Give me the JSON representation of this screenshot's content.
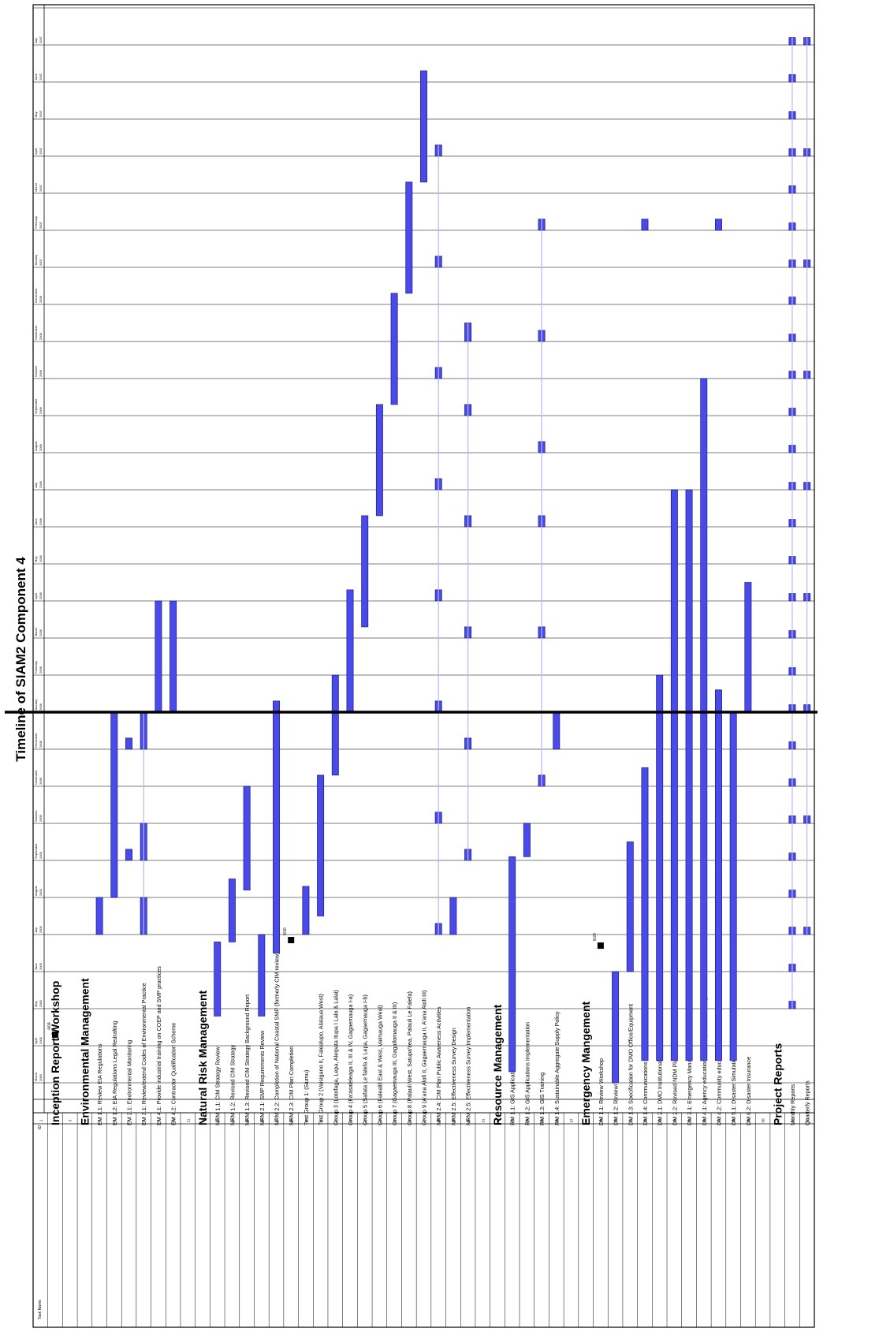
{
  "chart_data": {
    "type": "gantt",
    "title": "Timeline of SIAM2 Component 4",
    "columns": {
      "id": "ID",
      "task_name": "Task Name"
    },
    "months": [
      {
        "name": "March",
        "year": "2005"
      },
      {
        "name": "April",
        "year": "2005"
      },
      {
        "name": "May",
        "year": "2005"
      },
      {
        "name": "June",
        "year": "2005"
      },
      {
        "name": "July",
        "year": "2005"
      },
      {
        "name": "August",
        "year": "2005"
      },
      {
        "name": "September",
        "year": "2005"
      },
      {
        "name": "October",
        "year": "2005"
      },
      {
        "name": "November",
        "year": "2005"
      },
      {
        "name": "December",
        "year": "2005"
      },
      {
        "name": "January",
        "year": "2006"
      },
      {
        "name": "February",
        "year": "2006"
      },
      {
        "name": "March",
        "year": "2006"
      },
      {
        "name": "April",
        "year": "2006"
      },
      {
        "name": "May",
        "year": "2006"
      },
      {
        "name": "June",
        "year": "2006"
      },
      {
        "name": "July",
        "year": "2006"
      },
      {
        "name": "August",
        "year": "2006"
      },
      {
        "name": "September",
        "year": "2006"
      },
      {
        "name": "October",
        "year": "2006"
      },
      {
        "name": "November",
        "year": "2006"
      },
      {
        "name": "December",
        "year": "2006"
      },
      {
        "name": "January",
        "year": "2007"
      },
      {
        "name": "February",
        "year": "2007"
      },
      {
        "name": "March",
        "year": "2007"
      },
      {
        "name": "April",
        "year": "2007"
      },
      {
        "name": "May",
        "year": "2007"
      },
      {
        "name": "June",
        "year": "2007"
      },
      {
        "name": "July",
        "year": "2007"
      }
    ],
    "today_line_month": 10,
    "tasks": [
      {
        "id": "1",
        "name": "",
        "heading": false
      },
      {
        "id": "2",
        "name": "Inception Report Workshop",
        "heading": true,
        "milestone": 1.3,
        "milestone_label": "4/04"
      },
      {
        "id": "3",
        "name": "",
        "heading": false
      },
      {
        "id": "4",
        "name": "Environmental Management",
        "heading": true
      },
      {
        "id": "5",
        "name": "EM 1.1: Review EIA Regulations",
        "bars": [
          [
            4.0,
            5.0
          ]
        ]
      },
      {
        "id": "6",
        "name": "EM 1.2: EIA Regulations Legal Redrafting",
        "bars": [
          [
            5.0,
            10.0
          ]
        ]
      },
      {
        "id": "7",
        "name": "EM 2.1: Environmental Monitoring",
        "bars": [
          [
            6.0,
            6.3
          ],
          [
            9.0,
            9.3
          ]
        ]
      },
      {
        "id": "8",
        "name": "EM 3.1: Review/extend Codes of Environmental Practice",
        "bars": [
          [
            4.0,
            5.0
          ],
          [
            6.0,
            7.0
          ],
          [
            9.0,
            10.0
          ]
        ]
      },
      {
        "id": "9",
        "name": "EM 4.1: Provide industrial training on COEP and SMP practices",
        "bars": [
          [
            10.0,
            13.0
          ]
        ]
      },
      {
        "id": "10",
        "name": "EM 4.2: Contractor Qualification Scheme",
        "bars": [
          [
            10.0,
            13.0
          ]
        ]
      },
      {
        "id": "11",
        "name": "",
        "heading": false
      },
      {
        "id": "12",
        "name": "Natural Risk Management",
        "heading": true
      },
      {
        "id": "13",
        "name": "NRM 1.1: CIM Strategy Review",
        "bars": [
          [
            1.8,
            3.8
          ]
        ]
      },
      {
        "id": "14",
        "name": "NRM 1.2: Revised CIM Strategy",
        "bars": [
          [
            3.8,
            5.5
          ]
        ]
      },
      {
        "id": "15",
        "name": "NRM 1.3: Revised CIM Strategy Background Report",
        "bars": [
          [
            5.2,
            8.0
          ]
        ]
      },
      {
        "id": "16",
        "name": "NRM 2.1: SMP Requirements Review",
        "bars": [
          [
            1.8,
            4.0
          ]
        ]
      },
      {
        "id": "17",
        "name": "NRM 2.2: Completion of National Coastal SMP (formerly CIM review)",
        "bars": [
          [
            3.5,
            10.3
          ]
        ]
      },
      {
        "id": "18",
        "name": "NRM 2.3: CIM Plan Completion",
        "milestone": 3.85,
        "milestone_label": "6/30"
      },
      {
        "id": "19",
        "name": "Test Group 1: (Siumu)",
        "bars": [
          [
            4.0,
            5.3
          ]
        ]
      },
      {
        "id": "20",
        "name": "Test Group 2 (Vaisigano II, Falealupo, Alataua West)",
        "bars": [
          [
            4.5,
            8.3
          ]
        ]
      },
      {
        "id": "21",
        "name": "Group 3 (Lotofaga, Lepa, Aleipata Itupa I Lalo & Lalai)",
        "bars": [
          [
            8.3,
            11.0
          ]
        ]
      },
      {
        "id": "22",
        "name": "Group 4 (Fa'asaleleaga II, III & IV, Gagaemauga I-a)",
        "bars": [
          [
            10.0,
            13.3
          ]
        ]
      },
      {
        "id": "23",
        "name": "Group 5 (Safata Le falefa & Lepa, Gagaemauga I-b)",
        "bars": [
          [
            12.3,
            15.3
          ]
        ]
      },
      {
        "id": "24",
        "name": "Group 6 (Falealili East & West, Vaimauga West)",
        "bars": [
          [
            15.3,
            18.3
          ]
        ]
      },
      {
        "id": "25",
        "name": "Group 7 (Gagaemauga III, Gagaifomauga II & III)",
        "bars": [
          [
            18.3,
            21.3
          ]
        ]
      },
      {
        "id": "26",
        "name": "Group 8 (Palauli West, Satupa'itea, Palauli Le Falefa)",
        "bars": [
          [
            21.3,
            24.3
          ]
        ]
      },
      {
        "id": "27",
        "name": "Group 9 (A'ana Alofi II, Gagaemauga II, A'ana Alofi III)",
        "bars": [
          [
            24.3,
            27.3
          ]
        ]
      },
      {
        "id": "28",
        "name": "NRM 2.4: CIM Plan Public Awareness Activities",
        "bars": [
          [
            4.0,
            4.3
          ],
          [
            7.0,
            7.3
          ],
          [
            10.0,
            10.3
          ],
          [
            13.0,
            13.3
          ],
          [
            16.0,
            16.3
          ],
          [
            19.0,
            19.3
          ],
          [
            22.0,
            22.3
          ],
          [
            25.0,
            25.3
          ]
        ]
      },
      {
        "id": "29",
        "name": "NRM 2.5: Effectiveness Survey Design",
        "bars": [
          [
            4.0,
            5.0
          ]
        ]
      },
      {
        "id": "30",
        "name": "NRM 2.5: Effectiveness Survey Implementation",
        "bars": [
          [
            6.0,
            6.3
          ],
          [
            9.0,
            9.3
          ],
          [
            12.0,
            12.3
          ],
          [
            15.0,
            15.3
          ],
          [
            18.0,
            18.3
          ],
          [
            20.0,
            20.5
          ]
        ]
      },
      {
        "id": "31",
        "name": "",
        "heading": false
      },
      {
        "id": "32",
        "name": "Resource Management",
        "heading": true
      },
      {
        "id": "33",
        "name": "RM 1.1: GIS Applications Review",
        "bars": [
          [
            0.3,
            6.1
          ]
        ]
      },
      {
        "id": "34",
        "name": "RM 1.2: GIS Applications Implementation",
        "bars": [
          [
            6.1,
            7.0
          ]
        ]
      },
      {
        "id": "35",
        "name": "RM 1.3: GIS Training",
        "bars": [
          [
            8.0,
            8.3
          ],
          [
            12.0,
            12.3
          ],
          [
            15.0,
            15.3
          ],
          [
            17.0,
            17.3
          ],
          [
            20.0,
            20.3
          ],
          [
            23.0,
            23.3
          ]
        ]
      },
      {
        "id": "36",
        "name": "RM 1.4: Sustainable Aggregate Supply Policy",
        "bars": [
          [
            9.0,
            10.0
          ]
        ]
      },
      {
        "id": "37",
        "name": "",
        "heading": false
      },
      {
        "id": "38",
        "name": "Emergency Mangement",
        "heading": true
      },
      {
        "id": "39",
        "name": "DM 1.1: Review Workshop",
        "milestone": 3.7,
        "milestone_label": "6/20"
      },
      {
        "id": "40",
        "name": "DM 1.2: Review/ NDM Plan",
        "bars": [
          [
            0.0,
            3.0
          ]
        ]
      },
      {
        "id": "41",
        "name": "DM 1.3: Specification for DMO Office/Equipment",
        "bars": [
          [
            3.0,
            6.5
          ]
        ]
      },
      {
        "id": "42",
        "name": "DM 1.4: Communications Equipment Supply Specification",
        "bars": [
          [
            0.6,
            8.5
          ],
          [
            23.0,
            23.3
          ]
        ]
      },
      {
        "id": "43",
        "name": "DM 2.1: DMO Institutional & Staff Development",
        "bars": [
          [
            0.6,
            11.0
          ]
        ]
      },
      {
        "id": "44",
        "name": "DM 2.2: Revised NDM Plan",
        "bars": [
          [
            0.6,
            16.0
          ]
        ]
      },
      {
        "id": "45",
        "name": "DM 3.1: Emergency Management Legislation Review",
        "bars": [
          [
            0.6,
            16.0
          ]
        ]
      },
      {
        "id": "46",
        "name": "DM 4.1: Agency education and Response Planning",
        "bars": [
          [
            0.6,
            19.0
          ]
        ]
      },
      {
        "id": "47",
        "name": "DM 4.2: Community education and Development",
        "bars": [
          [
            0.6,
            10.6
          ],
          [
            23.0,
            23.3
          ]
        ]
      },
      {
        "id": "48",
        "name": "DM 5.1: Disaster Simulations",
        "bars": [
          [
            0.6,
            10.0
          ]
        ]
      },
      {
        "id": "49",
        "name": "DM 6.2: Disaster Insurance",
        "bars": [
          [
            10.0,
            13.5
          ]
        ]
      },
      {
        "id": "50",
        "name": "",
        "heading": false
      },
      {
        "id": "51",
        "name": "Project Reports",
        "heading": true
      },
      {
        "id": "52",
        "name": "Monthly Reports",
        "bars": [
          [
            2.0,
            2.2
          ],
          [
            3.0,
            3.2
          ],
          [
            4.0,
            4.2
          ],
          [
            5.0,
            5.2
          ],
          [
            6.0,
            6.2
          ],
          [
            7.0,
            7.2
          ],
          [
            8.0,
            8.2
          ],
          [
            9.0,
            9.2
          ],
          [
            10.0,
            10.2
          ],
          [
            11.0,
            11.2
          ],
          [
            12.0,
            12.2
          ],
          [
            13.0,
            13.2
          ],
          [
            14.0,
            14.2
          ],
          [
            15.0,
            15.2
          ],
          [
            16.0,
            16.2
          ],
          [
            17.0,
            17.2
          ],
          [
            18.0,
            18.2
          ],
          [
            19.0,
            19.2
          ],
          [
            20.0,
            20.2
          ],
          [
            21.0,
            21.2
          ],
          [
            22.0,
            22.2
          ],
          [
            23.0,
            23.2
          ],
          [
            24.0,
            24.2
          ],
          [
            25.0,
            25.2
          ],
          [
            26.0,
            26.2
          ],
          [
            27.0,
            27.2
          ],
          [
            28.0,
            28.2
          ]
        ]
      },
      {
        "id": "53",
        "name": "Quarterly Reports",
        "bars": [
          [
            4.0,
            4.2
          ],
          [
            7.0,
            7.2
          ],
          [
            10.0,
            10.2
          ],
          [
            13.0,
            13.2
          ],
          [
            16.0,
            16.2
          ],
          [
            19.0,
            19.2
          ],
          [
            22.0,
            22.2
          ],
          [
            25.0,
            25.2
          ],
          [
            28.0,
            28.2
          ]
        ]
      }
    ]
  }
}
